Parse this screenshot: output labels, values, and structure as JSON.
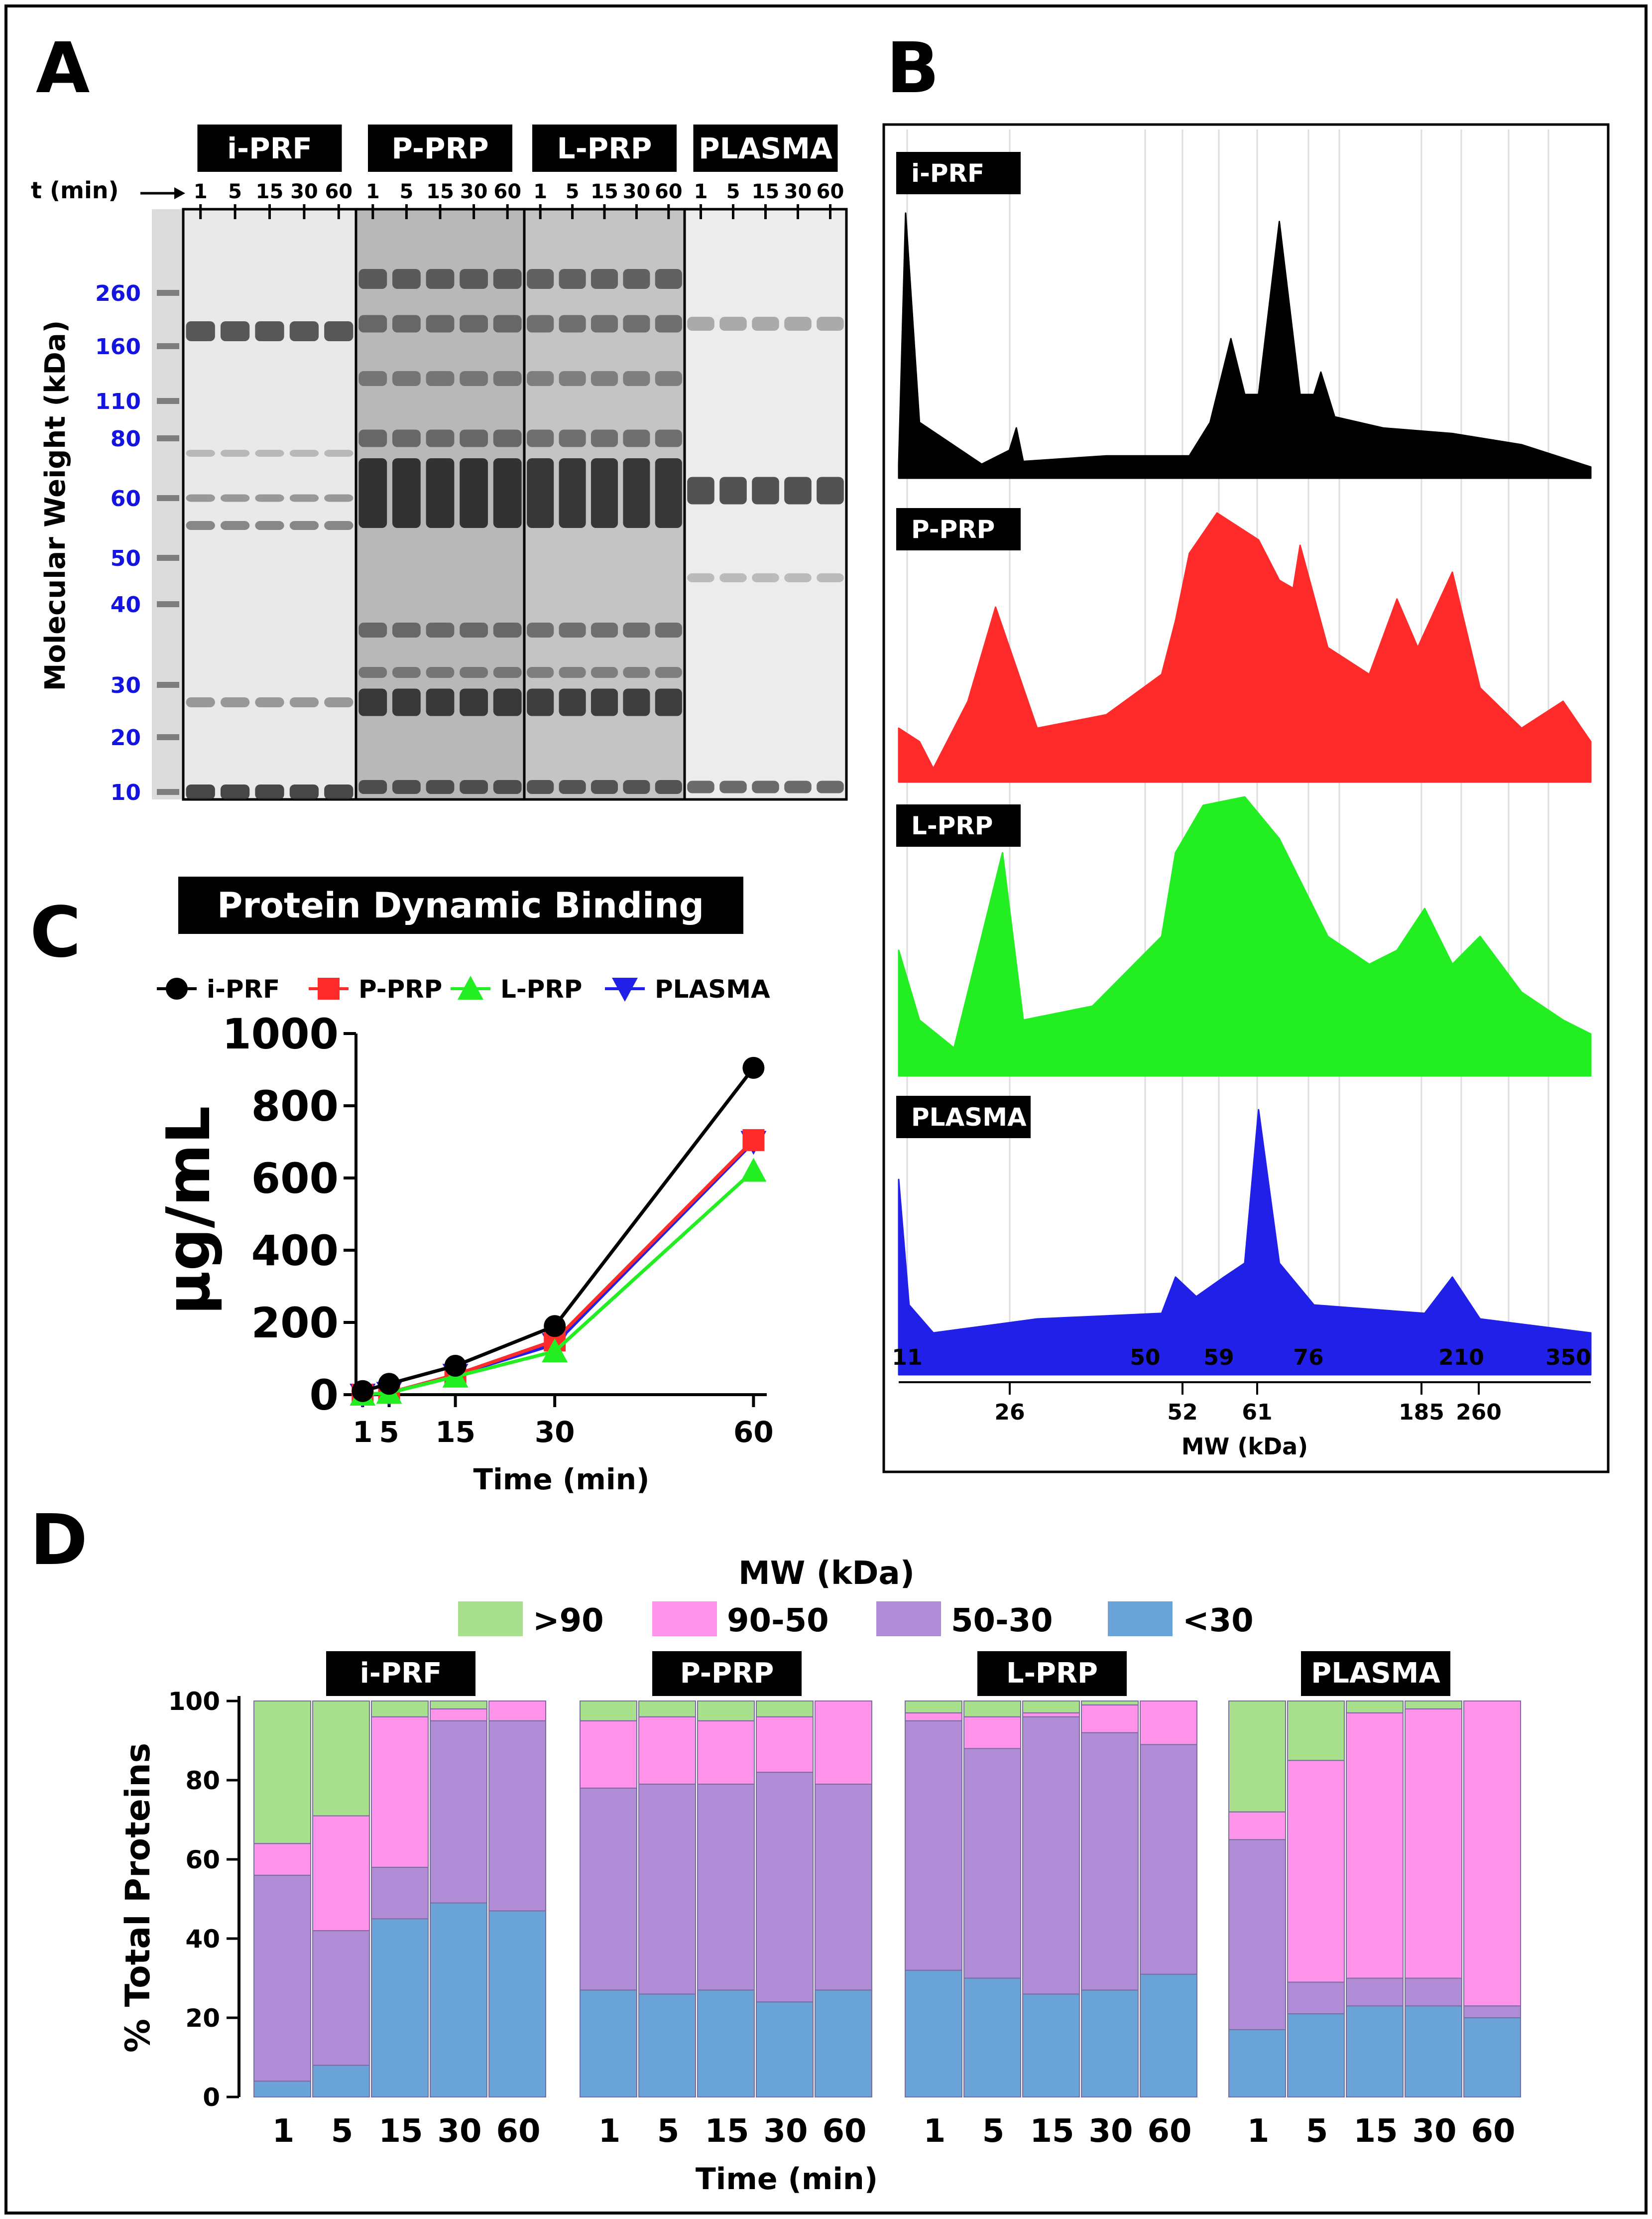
{
  "panel_labels": {
    "a": "A",
    "b": "B",
    "c": "C",
    "d": "D"
  },
  "colors": {
    "i_prf": "#000000",
    "p_prp": "#ff2b2b",
    "l_prp": "#22ee22",
    "plasma": "#2020e8",
    "gt90": "#a8e08e",
    "s90_50": "#ff94ea",
    "s50_30": "#b08cd6",
    "lt30": "#6aa3d8",
    "mw_label": "#1414e0"
  },
  "gel": {
    "groups": [
      "i-PRF",
      "P-PRP",
      "L-PRP",
      "PLASMA"
    ],
    "time_label": "t (min)",
    "times": [
      "1",
      "5",
      "15",
      "30",
      "60"
    ],
    "ylabel": "Molecular Weight (kDa)",
    "mw_markers": [
      "260",
      "160",
      "110",
      "80",
      "60",
      "50",
      "40",
      "30",
      "20",
      "10"
    ]
  },
  "densitometry": {
    "profiles": [
      "i-PRF",
      "P-PRP",
      "L-PRP",
      "PLASMA"
    ],
    "top_ticks": [
      "11",
      "50",
      "59",
      "76",
      "210",
      "350"
    ],
    "bottom_ticks": [
      "26",
      "52",
      "61",
      "185",
      "260"
    ],
    "xlabel": "MW (kDa)"
  },
  "chart_data": [
    {
      "type": "line",
      "title": "Protein Dynamic Binding",
      "xlabel": "Time (min)",
      "ylabel": "µg/mL",
      "x": [
        1,
        5,
        15,
        30,
        60
      ],
      "xticks": [
        "1",
        "5",
        "15",
        "30",
        "60"
      ],
      "yticks": [
        "0",
        "200",
        "400",
        "600",
        "800",
        "1000"
      ],
      "xlim": [
        0,
        62
      ],
      "ylim": [
        0,
        1000
      ],
      "legend": "top",
      "series": [
        {
          "name": "i-PRF",
          "values": [
            10,
            30,
            80,
            190,
            905
          ],
          "marker": "circle"
        },
        {
          "name": "P-PRP",
          "values": [
            0,
            5,
            55,
            150,
            705
          ],
          "marker": "square"
        },
        {
          "name": "L-PRP",
          "values": [
            0,
            5,
            50,
            120,
            620
          ],
          "marker": "triangle-up"
        },
        {
          "name": "PLASMA",
          "values": [
            0,
            5,
            55,
            140,
            700
          ],
          "marker": "triangle-down"
        }
      ]
    },
    {
      "type": "bar",
      "stacked": true,
      "title": "",
      "legend_title": "MW (kDa)",
      "xlabel": "Time (min)",
      "ylabel": "% Total Proteins",
      "ylim": [
        0,
        100
      ],
      "yticks": [
        "0",
        "20",
        "40",
        "60",
        "80",
        "100"
      ],
      "groups": [
        "i-PRF",
        "P-PRP",
        "L-PRP",
        "PLASMA"
      ],
      "categories": [
        "1",
        "5",
        "15",
        "30",
        "60"
      ],
      "series": [
        {
          "name": "<30",
          "values": [
            [
              4,
              8,
              45,
              49,
              47
            ],
            [
              27,
              26,
              27,
              24,
              27
            ],
            [
              32,
              30,
              26,
              27,
              31
            ],
            [
              17,
              21,
              23,
              23,
              20
            ]
          ]
        },
        {
          "name": "50-30",
          "values": [
            [
              52,
              34,
              13,
              46,
              48
            ],
            [
              51,
              53,
              52,
              58,
              52
            ],
            [
              63,
              58,
              70,
              65,
              58
            ],
            [
              48,
              8,
              7,
              7,
              3
            ]
          ]
        },
        {
          "name": "90-50",
          "values": [
            [
              8,
              29,
              38,
              3,
              5
            ],
            [
              17,
              17,
              16,
              14,
              21
            ],
            [
              2,
              8,
              1,
              7,
              11
            ],
            [
              7,
              56,
              67,
              68,
              77
            ]
          ]
        },
        {
          "name": ">90",
          "values": [
            [
              36,
              29,
              4,
              2,
              0
            ],
            [
              5,
              4,
              5,
              4,
              0
            ],
            [
              3,
              4,
              3,
              1,
              0
            ],
            [
              28,
              15,
              3,
              2,
              0
            ]
          ]
        }
      ]
    }
  ]
}
